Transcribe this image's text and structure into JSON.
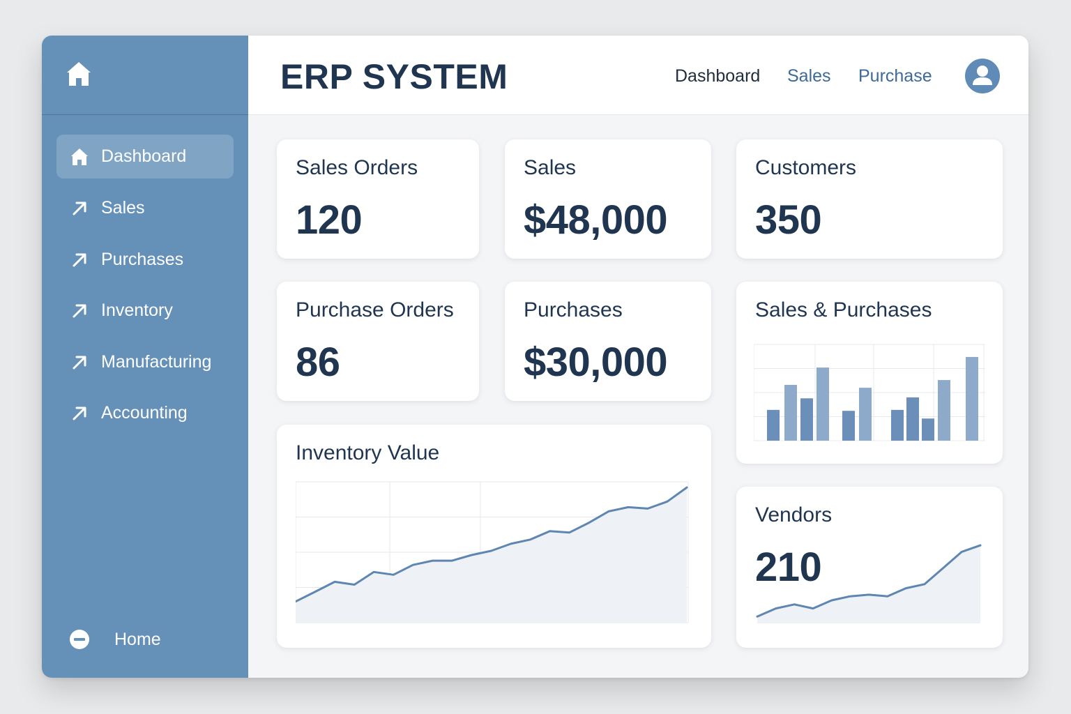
{
  "header": {
    "title": "ERP SYSTEM",
    "links": [
      {
        "label": "Dashboard",
        "style": "dark"
      },
      {
        "label": "Sales",
        "style": "blue"
      },
      {
        "label": "Purchase",
        "style": "blue"
      }
    ],
    "avatar_icon": "user-icon"
  },
  "sidebar": {
    "logo_icon": "home-icon",
    "items": [
      {
        "label": "Dashboard",
        "icon": "home-icon",
        "active": true
      },
      {
        "label": "Sales",
        "icon": "arrow-up-right-icon",
        "active": false
      },
      {
        "label": "Purchases",
        "icon": "arrow-up-right-icon",
        "active": false
      },
      {
        "label": "Inventory",
        "icon": "arrow-up-right-icon",
        "active": false
      },
      {
        "label": "Manufacturing",
        "icon": "arrow-up-right-icon",
        "active": false
      },
      {
        "label": "Accounting",
        "icon": "arrow-up-right-icon",
        "active": false
      }
    ],
    "bottom": {
      "label": "Home",
      "icon": "minus-circle-icon"
    }
  },
  "cards": {
    "sales_orders": {
      "title": "Sales Orders",
      "value": "120"
    },
    "sales": {
      "title": "Sales",
      "value": "$48,000"
    },
    "customers": {
      "title": "Customers",
      "value": "350"
    },
    "purchase_orders": {
      "title": "Purchase Orders",
      "value": "86"
    },
    "purchases": {
      "title": "Purchases",
      "value": "$30,000"
    },
    "sales_purchases": {
      "title": "Sales & Purchases"
    },
    "inventory_value": {
      "title": "Inventory Value"
    },
    "vendors": {
      "title": "Vendors",
      "value": "210"
    }
  },
  "colors": {
    "sidebar": "#6590b8",
    "accent": "#5f86b0",
    "bar_light": "#8eaacb",
    "text_dark": "#1f3550"
  },
  "chart_data": [
    {
      "type": "bar",
      "title": "Sales & Purchases",
      "ylim": [
        0,
        10
      ],
      "grid": true,
      "values": [
        3.2,
        5.8,
        4.4,
        7.6,
        3.1,
        5.5,
        3.2,
        4.5,
        2.3,
        6.3,
        8.7
      ]
    },
    {
      "type": "area",
      "title": "Inventory Value",
      "ylim": [
        0,
        10
      ],
      "grid": true,
      "values": [
        1.5,
        2.2,
        2.9,
        2.7,
        3.6,
        3.4,
        4.1,
        4.4,
        4.4,
        4.8,
        5.1,
        5.6,
        5.9,
        6.5,
        6.4,
        7.1,
        7.9,
        8.2,
        8.1,
        8.6,
        9.6
      ]
    },
    {
      "type": "area",
      "title": "",
      "ylim": [
        0,
        10
      ],
      "grid": false,
      "values": [
        0.5,
        1.5,
        2.0,
        1.5,
        2.5,
        3.0,
        3.2,
        3.0,
        4.0,
        4.5,
        6.5,
        8.5,
        9.3
      ]
    }
  ]
}
